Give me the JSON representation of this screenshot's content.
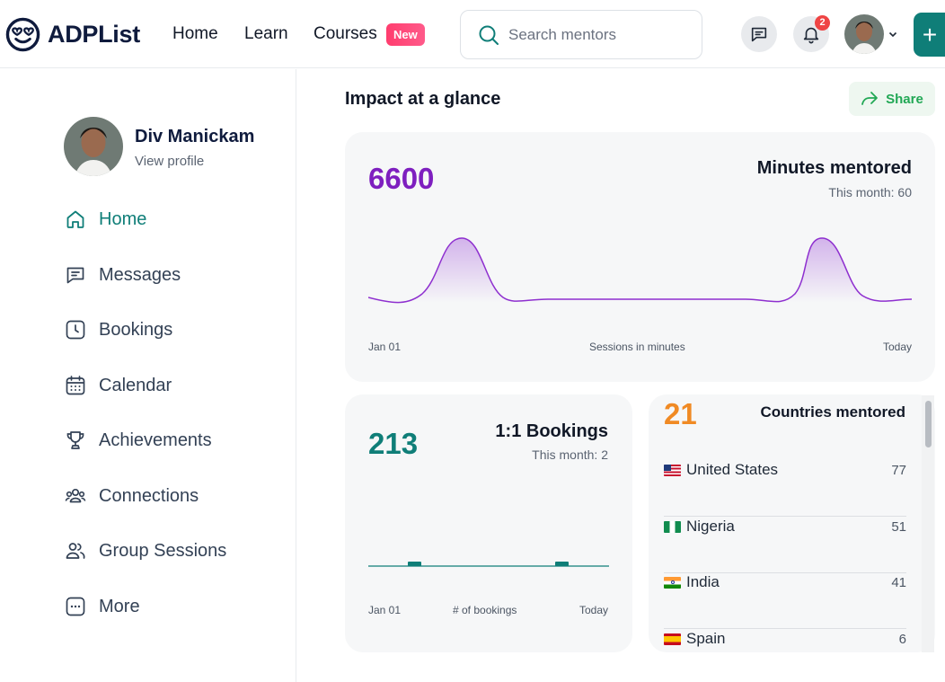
{
  "app": {
    "brand": "ADPList",
    "nav": {
      "home": "Home",
      "learn": "Learn",
      "courses": "Courses",
      "new_badge": "New"
    },
    "search": {
      "placeholder": "Search mentors"
    },
    "notifications_count": "2",
    "plus_label": "+"
  },
  "sidebar": {
    "profile": {
      "name": "Div Manickam",
      "link": "View profile"
    },
    "items": [
      {
        "label": "Home",
        "icon": "home-icon",
        "active": true
      },
      {
        "label": "Messages",
        "icon": "message-icon"
      },
      {
        "label": "Bookings",
        "icon": "clock-icon"
      },
      {
        "label": "Calendar",
        "icon": "calendar-icon"
      },
      {
        "label": "Achievements",
        "icon": "trophy-icon"
      },
      {
        "label": "Connections",
        "icon": "connections-icon"
      },
      {
        "label": "Group Sessions",
        "icon": "group-icon"
      },
      {
        "label": "More",
        "icon": "more-icon"
      }
    ]
  },
  "main": {
    "title": "Impact at a glance",
    "share_label": "Share",
    "minutes": {
      "value": "6600",
      "title": "Minutes mentored",
      "subtitle": "This month: 60",
      "axis_start": "Jan 01",
      "axis_mid": "Sessions in minutes",
      "axis_end": "Today"
    },
    "bookings": {
      "value": "213",
      "title": "1:1 Bookings",
      "subtitle": "This month: 2",
      "axis_start": "Jan 01",
      "axis_mid": "# of bookings",
      "axis_end": "Today"
    },
    "countries": {
      "value": "21",
      "title": "Countries mentored",
      "rows": [
        {
          "name": "United States",
          "count": "77",
          "flag": "us-flag"
        },
        {
          "name": "Nigeria",
          "count": "51",
          "flag": "ng-flag"
        },
        {
          "name": "India",
          "count": "41",
          "flag": "in-flag"
        },
        {
          "name": "Spain",
          "count": "6",
          "flag": "es-flag"
        }
      ]
    }
  },
  "colors": {
    "accent": "#0f7e78",
    "minutes": "#7e1fbf",
    "bookings": "#0f7e78",
    "countries": "#f08a24",
    "new_badge": "#ff3d6e",
    "share": "#22a855"
  }
}
